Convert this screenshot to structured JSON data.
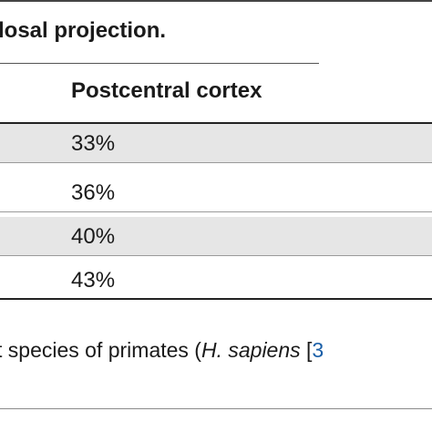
{
  "caption": "losal projection.",
  "table": {
    "column_header": "Postcentral cortex",
    "rows": [
      "33%",
      "36%",
      "40%",
      "43%"
    ]
  },
  "footnote": {
    "prefix": "t species of primates (",
    "italic": "H. sapiens",
    "space": " [",
    "ref": "3"
  },
  "colors": {
    "row_shading": "#e6e6e6",
    "reference_link": "#1a5fa8"
  }
}
